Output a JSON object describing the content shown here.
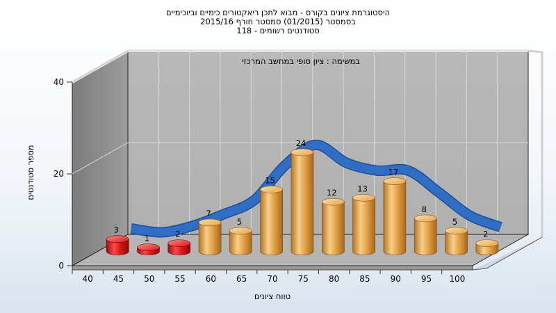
{
  "title_lines": [
    "היסטוגרמת ציונים בקורס - מבוא לתכן ריאקטורים כימיים וביוכימיים",
    "בסמסטר  (01/2015)  סמסטר חורף 2015/16",
    "סטודנטים רשומים - 118"
  ],
  "inner_note": "במשימה : ציון סופי במחשב המרכזי",
  "chart_data": {
    "type": "bar",
    "title": "היסטוגרמת ציונים בקורס - מבוא לתכן ריאקטורים כימיים וביוכימיים",
    "xlabel": "טווח ציונים",
    "ylabel": "מספר סטודנטים",
    "ylim": [
      0,
      40
    ],
    "yticks": [
      0,
      20,
      40
    ],
    "categories": [
      "40",
      "45",
      "50",
      "55",
      "60",
      "65",
      "70",
      "75",
      "80",
      "85",
      "90",
      "95",
      "100"
    ],
    "values": [
      3,
      1,
      2,
      7,
      5,
      15,
      24,
      12,
      13,
      17,
      8,
      5,
      2
    ],
    "fail_colour": "#e01818",
    "pass_colour": "#e8a948",
    "curve_colour": "#2f6ec4",
    "wall_colour": "#b3b3b3",
    "grid": true,
    "three_d": true
  }
}
